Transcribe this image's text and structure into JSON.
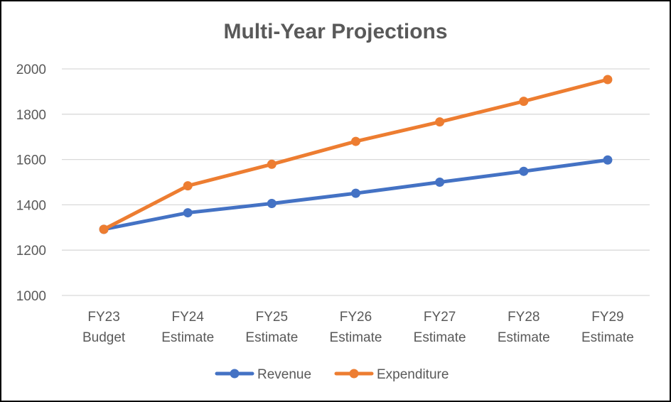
{
  "chart_data": {
    "type": "line",
    "title": "Multi-Year Projections",
    "categories": [
      [
        "FY23",
        "Budget"
      ],
      [
        "FY24",
        "Estimate"
      ],
      [
        "FY25",
        "Estimate"
      ],
      [
        "FY26",
        "Estimate"
      ],
      [
        "FY27",
        "Estimate"
      ],
      [
        "FY28",
        "Estimate"
      ],
      [
        "FY29",
        "Estimate"
      ]
    ],
    "ylim": [
      1000,
      2000
    ],
    "yticks": [
      "1000",
      "1200",
      "1400",
      "1600",
      "1800",
      "2000"
    ],
    "grid": true,
    "legend_position": "bottom",
    "series": [
      {
        "name": "Revenue",
        "color": "#4472C4",
        "values": [
          1292,
          1365,
          1406,
          1451,
          1500,
          1548,
          1598
        ]
      },
      {
        "name": "Expenditure",
        "color": "#ED7D31",
        "values": [
          1292,
          1484,
          1579,
          1680,
          1766,
          1857,
          1953
        ]
      }
    ],
    "xlabel": "",
    "ylabel": ""
  }
}
